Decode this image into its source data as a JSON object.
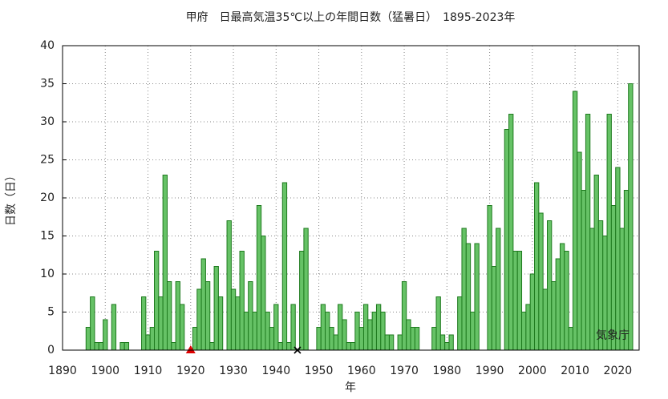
{
  "chart_data": {
    "type": "bar",
    "title": "甲府　日最高気温35℃以上の年間日数（猛暑日）　1895-2023年",
    "x_label": "年",
    "y_label": "日数（日）",
    "annotation": "気象庁",
    "x": [
      1895,
      1896,
      1897,
      1898,
      1899,
      1900,
      1901,
      1902,
      1903,
      1904,
      1905,
      1906,
      1907,
      1908,
      1909,
      1910,
      1911,
      1912,
      1913,
      1914,
      1915,
      1916,
      1917,
      1918,
      1919,
      1920,
      1921,
      1922,
      1923,
      1924,
      1925,
      1926,
      1927,
      1928,
      1929,
      1930,
      1931,
      1932,
      1933,
      1934,
      1935,
      1936,
      1937,
      1938,
      1939,
      1940,
      1941,
      1942,
      1943,
      1944,
      1945,
      1946,
      1947,
      1948,
      1949,
      1950,
      1951,
      1952,
      1953,
      1954,
      1955,
      1956,
      1957,
      1958,
      1959,
      1960,
      1961,
      1962,
      1963,
      1964,
      1965,
      1966,
      1967,
      1968,
      1969,
      1970,
      1971,
      1972,
      1973,
      1974,
      1975,
      1976,
      1977,
      1978,
      1979,
      1980,
      1981,
      1982,
      1983,
      1984,
      1985,
      1986,
      1987,
      1988,
      1989,
      1990,
      1991,
      1992,
      1993,
      1994,
      1995,
      1996,
      1997,
      1998,
      1999,
      2000,
      2001,
      2002,
      2003,
      2004,
      2005,
      2006,
      2007,
      2008,
      2009,
      2010,
      2011,
      2012,
      2013,
      2014,
      2015,
      2016,
      2017,
      2018,
      2019,
      2020,
      2021,
      2022,
      2023
    ],
    "values": [
      0,
      3,
      7,
      1,
      1,
      4,
      0,
      6,
      0,
      1,
      1,
      0,
      0,
      0,
      7,
      2,
      3,
      13,
      7,
      23,
      9,
      1,
      9,
      6,
      0,
      0,
      3,
      8,
      12,
      9,
      1,
      11,
      7,
      0,
      17,
      8,
      7,
      13,
      5,
      9,
      5,
      19,
      15,
      5,
      3,
      6,
      1,
      22,
      1,
      6,
      null,
      13,
      16,
      0,
      0,
      3,
      6,
      5,
      3,
      2,
      6,
      4,
      1,
      1,
      5,
      3,
      6,
      4,
      5,
      6,
      5,
      2,
      2,
      0,
      2,
      9,
      4,
      3,
      3,
      0,
      0,
      0,
      3,
      7,
      2,
      1,
      2,
      0,
      7,
      16,
      14,
      5,
      14,
      0,
      0,
      19,
      11,
      16,
      0,
      29,
      31,
      13,
      13,
      5,
      6,
      10,
      22,
      18,
      8,
      17,
      9,
      12,
      14,
      13,
      3,
      34,
      26,
      21,
      31,
      16,
      23,
      17,
      15,
      31,
      19,
      24,
      16,
      21,
      35
    ],
    "color": "#66c266",
    "edge_color": "#1e7a1e",
    "markers": [
      {
        "x": 1920,
        "y": 0,
        "shape": "triangle",
        "color": "#dd0000"
      },
      {
        "x": 1945,
        "y": 0,
        "shape": "cross",
        "color": "#000000"
      }
    ],
    "xlim": [
      1890,
      2025
    ],
    "ylim": [
      0,
      40
    ],
    "xticks": [
      1890,
      1900,
      1910,
      1920,
      1930,
      1940,
      1950,
      1960,
      1970,
      1980,
      1990,
      2000,
      2010,
      2020
    ],
    "yticks": [
      0,
      5,
      10,
      15,
      20,
      25,
      30,
      35,
      40
    ],
    "grid": true
  }
}
